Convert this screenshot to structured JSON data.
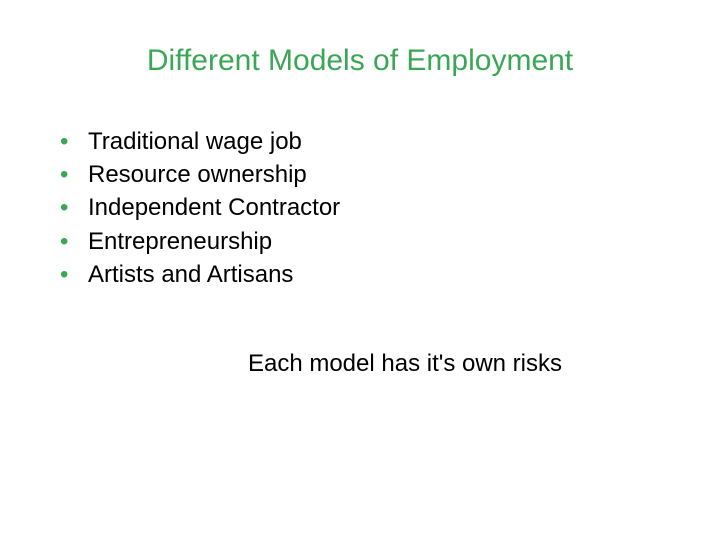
{
  "colors": {
    "title_color": "#3aa757",
    "bullet_color": "#3aa757",
    "text_color": "#000000",
    "background_color": "#ffffff"
  },
  "typography": {
    "title_fontsize": 30,
    "body_fontsize": 24,
    "font_family": "Arial"
  },
  "title": "Different Models of Employment",
  "bullets": [
    "Traditional wage job",
    "Resource ownership",
    "Independent Contractor",
    "Entrepreneurship",
    "Artists and Artisans"
  ],
  "footer": "Each model has it's own risks"
}
